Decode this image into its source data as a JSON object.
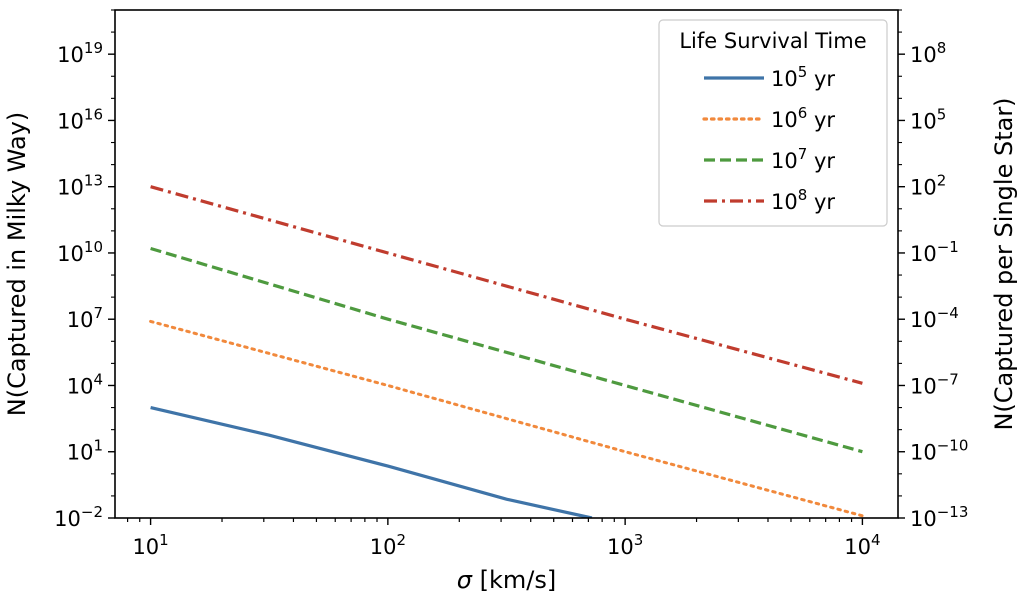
{
  "chart_data": {
    "type": "line",
    "title": "",
    "xlabel_symbol": "σ",
    "xlabel_unit": " [km/s]",
    "ylabel": "N(Captured in Milky Way)",
    "ylabel_right": "N(Captured per Single Star)",
    "x_scale": "log",
    "y_scale": "log",
    "xlim_log10": [
      0.85,
      4.15
    ],
    "ylim_log10": [
      -2,
      21
    ],
    "ylim_right_log10": [
      -13,
      10
    ],
    "x_ticks": [
      {
        "base": "10",
        "exp": "1",
        "log": 1
      },
      {
        "base": "10",
        "exp": "2",
        "log": 2
      },
      {
        "base": "10",
        "exp": "3",
        "log": 3
      },
      {
        "base": "10",
        "exp": "4",
        "log": 4
      }
    ],
    "y_ticks": [
      {
        "base": "10",
        "exp": "−2",
        "log": -2
      },
      {
        "base": "10",
        "exp": "1",
        "log": 1
      },
      {
        "base": "10",
        "exp": "4",
        "log": 4
      },
      {
        "base": "10",
        "exp": "7",
        "log": 7
      },
      {
        "base": "10",
        "exp": "10",
        "log": 10
      },
      {
        "base": "10",
        "exp": "13",
        "log": 13
      },
      {
        "base": "10",
        "exp": "16",
        "log": 16
      },
      {
        "base": "10",
        "exp": "19",
        "log": 19
      }
    ],
    "y_ticks_right": [
      {
        "base": "10",
        "exp": "−13",
        "log": -13
      },
      {
        "base": "10",
        "exp": "−10",
        "log": -10
      },
      {
        "base": "10",
        "exp": "−7",
        "log": -7
      },
      {
        "base": "10",
        "exp": "−4",
        "log": -4
      },
      {
        "base": "10",
        "exp": "−1",
        "log": -1
      },
      {
        "base": "10",
        "exp": "2",
        "log": 2
      },
      {
        "base": "10",
        "exp": "5",
        "log": 5
      },
      {
        "base": "10",
        "exp": "8",
        "log": 8
      }
    ],
    "legend": {
      "title": "Life Survival Time",
      "location": "upper right"
    },
    "series": [
      {
        "name_base": "10",
        "name_exp": "5",
        "name_unit": " yr",
        "color": "#3f74a8",
        "style": "solid",
        "x_log10": [
          1.0,
          1.5,
          2.0,
          2.5,
          2.86
        ],
        "y_log10": [
          3.0,
          1.75,
          0.35,
          -1.15,
          -2.0
        ]
      },
      {
        "name_base": "10",
        "name_exp": "6",
        "name_unit": " yr",
        "color": "#f1893c",
        "style": "dotted",
        "x_log10": [
          1.0,
          2.0,
          3.0,
          4.0
        ],
        "y_log10": [
          6.9,
          4.0,
          1.0,
          -1.9
        ]
      },
      {
        "name_base": "10",
        "name_exp": "7",
        "name_unit": " yr",
        "color": "#4e9a3f",
        "style": "dashed",
        "x_log10": [
          1.0,
          2.0,
          3.0,
          4.0
        ],
        "y_log10": [
          10.2,
          7.0,
          4.0,
          1.0
        ]
      },
      {
        "name_base": "10",
        "name_exp": "8",
        "name_unit": " yr",
        "color": "#c03c2e",
        "style": "dashdot",
        "x_log10": [
          1.0,
          2.0,
          3.0,
          4.0
        ],
        "y_log10": [
          13.0,
          10.0,
          7.0,
          4.1
        ]
      }
    ]
  }
}
